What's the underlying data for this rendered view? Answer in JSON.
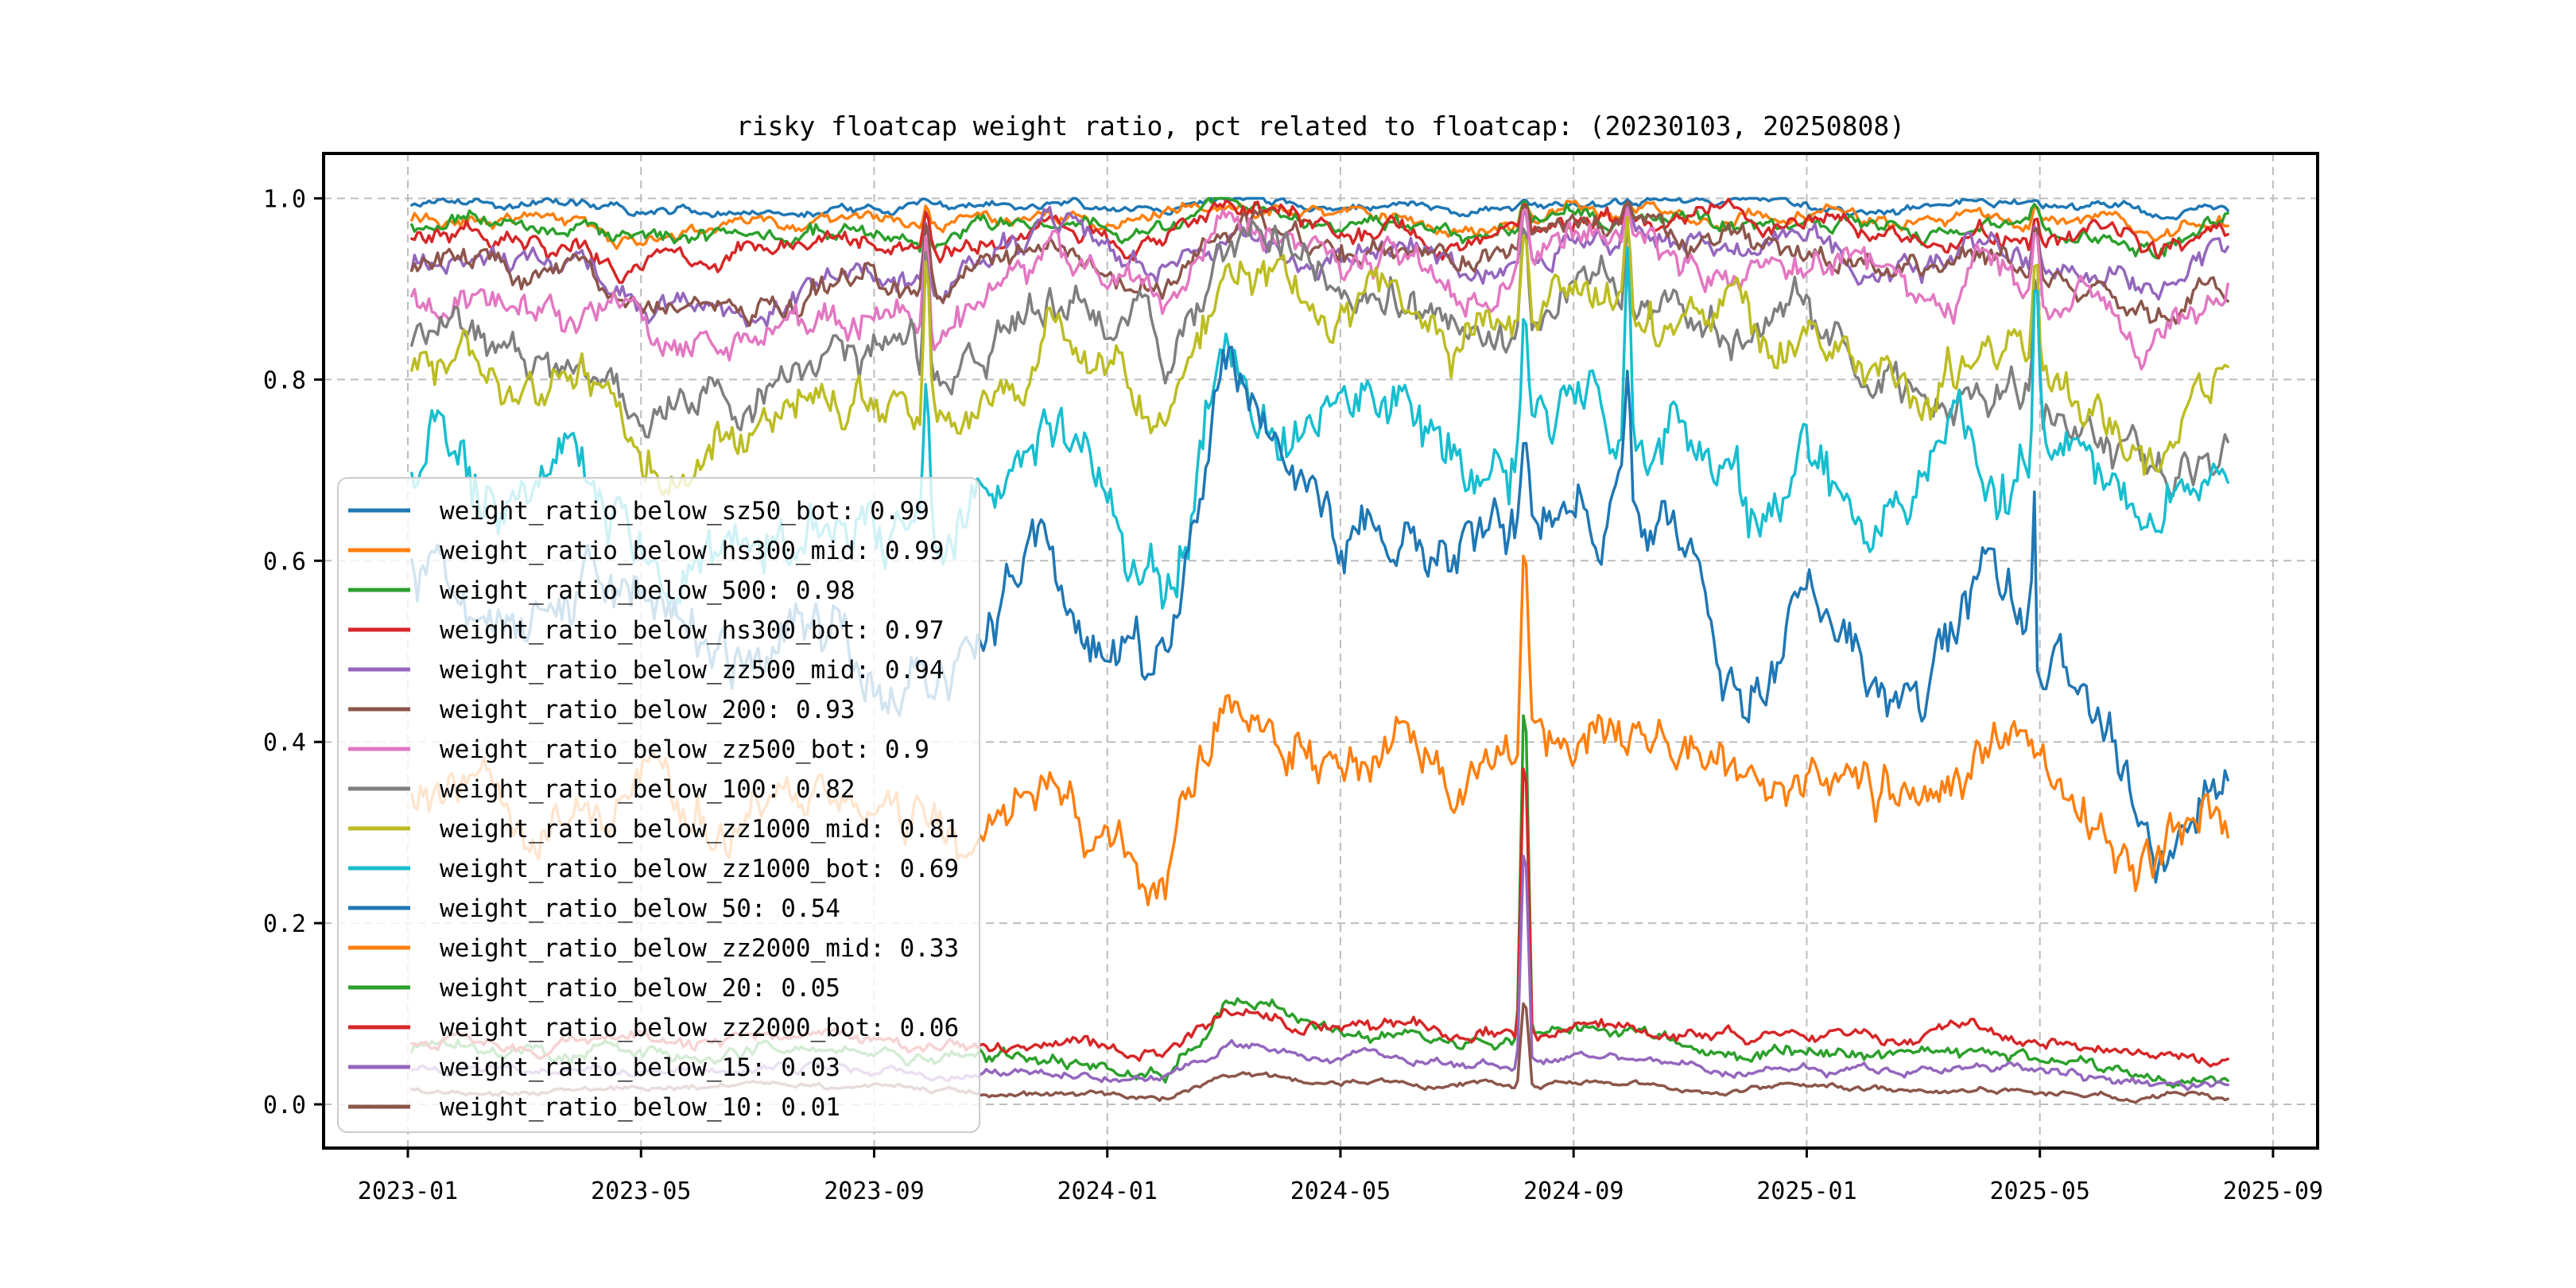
{
  "figure": {
    "title": "risky floatcap weight ratio, pct related to floatcap: (20230103, 20250808)",
    "background": "#ffffff"
  },
  "axes": {
    "x_tick_labels": [
      "2023-01",
      "2023-05",
      "2023-09",
      "2024-01",
      "2024-05",
      "2024-09",
      "2025-01",
      "2025-05",
      "2025-09"
    ],
    "x_tick_month_index": [
      0,
      4,
      8,
      12,
      16,
      20,
      24,
      28,
      32
    ],
    "y_tick_labels": [
      "0.0",
      "0.2",
      "0.4",
      "0.6",
      "0.8",
      "1.0"
    ],
    "y_tick_values": [
      0.0,
      0.2,
      0.4,
      0.6,
      0.8,
      1.0
    ],
    "grid": "dashed",
    "grid_color": "#bdbdbd",
    "spine_color": "#000000"
  },
  "chart_data": {
    "type": "line",
    "title": "risky floatcap weight ratio, pct related to floatcap: (20230103, 20250808)",
    "xlabel": "",
    "ylabel": "",
    "x_start_date": "2023-01-03",
    "x_end_date": "2025-08-08",
    "x_monthly_categories": [
      "2023-01",
      "2023-02",
      "2023-03",
      "2023-04",
      "2023-05",
      "2023-06",
      "2023-07",
      "2023-08",
      "2023-09",
      "2023-10",
      "2023-11",
      "2023-12",
      "2024-01",
      "2024-02",
      "2024-03",
      "2024-04",
      "2024-05",
      "2024-06",
      "2024-07",
      "2024-08",
      "2024-09",
      "2024-10",
      "2024-11",
      "2024-12",
      "2025-01",
      "2025-02",
      "2025-03",
      "2025-04",
      "2025-05",
      "2025-06",
      "2025-07",
      "2025-08"
    ],
    "ylim": [
      0.0,
      1.05
    ],
    "legend_position": "center left",
    "series": [
      {
        "id": "weight_ratio_below_sz50_bot",
        "legend_label": "weight_ratio_below_sz50_bot: 0.99",
        "legend_value": 0.99,
        "color": "#1f77b4",
        "noise": 0.006,
        "monthly_values": [
          0.99,
          0.994,
          0.993,
          0.99,
          0.984,
          0.986,
          0.982,
          0.986,
          0.986,
          0.99,
          0.994,
          0.995,
          0.988,
          0.986,
          0.996,
          0.994,
          0.99,
          0.992,
          0.986,
          0.99,
          0.995,
          0.995,
          0.994,
          0.995,
          0.992,
          0.99,
          0.99,
          0.994,
          0.992,
          0.99,
          0.986,
          0.992
        ]
      },
      {
        "id": "weight_ratio_below_hs300_mid",
        "legend_label": "weight_ratio_below_hs300_mid: 0.99",
        "legend_value": 0.99,
        "color": "#ff7f0e",
        "noise": 0.009,
        "monthly_values": [
          0.975,
          0.982,
          0.976,
          0.97,
          0.956,
          0.96,
          0.965,
          0.97,
          0.974,
          0.968,
          0.978,
          0.986,
          0.97,
          0.974,
          0.99,
          0.986,
          0.976,
          0.98,
          0.97,
          0.976,
          0.99,
          0.986,
          0.982,
          0.986,
          0.98,
          0.976,
          0.97,
          0.982,
          0.976,
          0.972,
          0.966,
          0.98
        ]
      },
      {
        "id": "weight_ratio_below_500",
        "legend_label": "weight_ratio_below_500: 0.98",
        "legend_value": 0.98,
        "color": "#2ca02c",
        "noise": 0.011,
        "monthly_values": [
          0.966,
          0.975,
          0.968,
          0.96,
          0.944,
          0.95,
          0.955,
          0.96,
          0.965,
          0.955,
          0.97,
          0.98,
          0.962,
          0.96,
          0.986,
          0.982,
          0.97,
          0.976,
          0.96,
          0.97,
          0.986,
          0.982,
          0.976,
          0.98,
          0.976,
          0.97,
          0.96,
          0.976,
          0.966,
          0.96,
          0.95,
          0.97
        ]
      },
      {
        "id": "weight_ratio_below_hs300_bot",
        "legend_label": "weight_ratio_below_hs300_bot: 0.97",
        "legend_value": 0.97,
        "color": "#d62728",
        "noise": 0.014,
        "monthly_values": [
          0.954,
          0.965,
          0.952,
          0.944,
          0.924,
          0.93,
          0.94,
          0.95,
          0.955,
          0.944,
          0.96,
          0.976,
          0.954,
          0.95,
          0.986,
          0.976,
          0.96,
          0.97,
          0.95,
          0.96,
          0.982,
          0.976,
          0.97,
          0.976,
          0.97,
          0.96,
          0.95,
          0.97,
          0.956,
          0.95,
          0.94,
          0.966
        ]
      },
      {
        "id": "weight_ratio_below_zz500_mid",
        "legend_label": "weight_ratio_below_zz500_mid: 0.94",
        "legend_value": 0.94,
        "color": "#9467bd",
        "noise": 0.018,
        "monthly_values": [
          0.925,
          0.94,
          0.928,
          0.918,
          0.884,
          0.89,
          0.9,
          0.91,
          0.915,
          0.898,
          0.924,
          0.95,
          0.93,
          0.92,
          0.972,
          0.962,
          0.94,
          0.95,
          0.92,
          0.93,
          0.966,
          0.96,
          0.95,
          0.956,
          0.95,
          0.935,
          0.92,
          0.946,
          0.93,
          0.924,
          0.9,
          0.936
        ]
      },
      {
        "id": "weight_ratio_below_200",
        "legend_label": "weight_ratio_below_200: 0.93",
        "legend_value": 0.93,
        "color": "#8c564b",
        "noise": 0.018,
        "monthly_values": [
          0.918,
          0.934,
          0.918,
          0.908,
          0.872,
          0.878,
          0.888,
          0.898,
          0.908,
          0.888,
          0.914,
          0.944,
          0.928,
          0.908,
          0.976,
          0.966,
          0.944,
          0.954,
          0.924,
          0.934,
          0.97,
          0.96,
          0.946,
          0.95,
          0.944,
          0.93,
          0.91,
          0.94,
          0.92,
          0.895,
          0.865,
          0.905
        ]
      },
      {
        "id": "weight_ratio_below_zz500_bot",
        "legend_label": "weight_ratio_below_zz500_bot: 0.9",
        "legend_value": 0.9,
        "color": "#e377c2",
        "noise": 0.024,
        "monthly_values": [
          0.898,
          0.914,
          0.894,
          0.884,
          0.838,
          0.844,
          0.858,
          0.874,
          0.884,
          0.858,
          0.89,
          0.93,
          0.904,
          0.88,
          0.984,
          0.954,
          0.924,
          0.94,
          0.9,
          0.914,
          0.954,
          0.944,
          0.93,
          0.94,
          0.93,
          0.914,
          0.888,
          0.92,
          0.898,
          0.884,
          0.844,
          0.89
        ]
      },
      {
        "id": "weight_ratio_below_100",
        "legend_label": "weight_ratio_below_100: 0.82",
        "legend_value": 0.82,
        "color": "#7f7f7f",
        "noise": 0.03,
        "monthly_values": [
          0.85,
          0.862,
          0.828,
          0.844,
          0.778,
          0.77,
          0.8,
          0.814,
          0.824,
          0.79,
          0.82,
          0.88,
          0.85,
          0.82,
          0.964,
          0.93,
          0.89,
          0.904,
          0.86,
          0.874,
          0.92,
          0.89,
          0.868,
          0.86,
          0.864,
          0.84,
          0.78,
          0.83,
          0.8,
          0.77,
          0.69,
          0.735
        ]
      },
      {
        "id": "weight_ratio_below_zz1000_mid",
        "legend_label": "weight_ratio_below_zz1000_mid: 0.81",
        "legend_value": 0.81,
        "color": "#bcbd22",
        "noise": 0.032,
        "monthly_values": [
          0.8,
          0.82,
          0.76,
          0.79,
          0.73,
          0.71,
          0.75,
          0.77,
          0.78,
          0.73,
          0.77,
          0.84,
          0.8,
          0.75,
          0.944,
          0.9,
          0.86,
          0.874,
          0.83,
          0.85,
          0.89,
          0.87,
          0.85,
          0.84,
          0.85,
          0.82,
          0.77,
          0.82,
          0.79,
          0.76,
          0.7,
          0.798
        ]
      },
      {
        "id": "weight_ratio_below_zz1000_bot",
        "legend_label": "weight_ratio_below_zz1000_bot: 0.69",
        "legend_value": 0.69,
        "color": "#17becf",
        "noise": 0.046,
        "monthly_values": [
          0.7,
          0.73,
          0.63,
          0.68,
          0.61,
          0.58,
          0.63,
          0.66,
          0.67,
          0.6,
          0.65,
          0.76,
          0.62,
          0.57,
          0.85,
          0.78,
          0.73,
          0.77,
          0.7,
          0.73,
          0.78,
          0.73,
          0.75,
          0.64,
          0.7,
          0.62,
          0.73,
          0.68,
          0.71,
          0.7,
          0.61,
          0.66
        ]
      },
      {
        "id": "weight_ratio_below_50",
        "legend_label": "weight_ratio_below_50: 0.54",
        "legend_value": 0.54,
        "color": "#1f77b4",
        "noise": 0.042,
        "monthly_values": [
          0.6,
          0.57,
          0.54,
          0.57,
          0.52,
          0.49,
          0.5,
          0.52,
          0.48,
          0.45,
          0.52,
          0.61,
          0.48,
          0.46,
          0.83,
          0.72,
          0.63,
          0.67,
          0.6,
          0.63,
          0.66,
          0.67,
          0.6,
          0.44,
          0.6,
          0.48,
          0.44,
          0.62,
          0.5,
          0.44,
          0.28,
          0.32
        ]
      },
      {
        "id": "weight_ratio_below_zz2000_mid",
        "legend_label": "weight_ratio_below_zz2000_mid: 0.33",
        "legend_value": 0.33,
        "color": "#ff7f0e",
        "noise": 0.034,
        "monthly_values": [
          0.33,
          0.35,
          0.3,
          0.34,
          0.36,
          0.33,
          0.35,
          0.36,
          0.33,
          0.29,
          0.31,
          0.36,
          0.25,
          0.22,
          0.44,
          0.4,
          0.38,
          0.4,
          0.36,
          0.38,
          0.4,
          0.41,
          0.38,
          0.33,
          0.38,
          0.33,
          0.35,
          0.4,
          0.37,
          0.33,
          0.25,
          0.31
        ]
      },
      {
        "id": "weight_ratio_below_20",
        "legend_label": "weight_ratio_below_20: 0.05",
        "legend_value": 0.05,
        "color": "#2ca02c",
        "noise": 0.009,
        "monthly_values": [
          0.055,
          0.06,
          0.05,
          0.055,
          0.06,
          0.055,
          0.06,
          0.065,
          0.055,
          0.05,
          0.05,
          0.055,
          0.04,
          0.035,
          0.115,
          0.1,
          0.08,
          0.085,
          0.07,
          0.075,
          0.085,
          0.075,
          0.065,
          0.055,
          0.065,
          0.05,
          0.055,
          0.06,
          0.05,
          0.04,
          0.03,
          0.025
        ]
      },
      {
        "id": "weight_ratio_below_zz2000_bot",
        "legend_label": "weight_ratio_below_zz2000_bot: 0.06",
        "legend_value": 0.06,
        "color": "#d62728",
        "noise": 0.009,
        "monthly_values": [
          0.07,
          0.075,
          0.065,
          0.07,
          0.075,
          0.07,
          0.075,
          0.08,
          0.07,
          0.065,
          0.065,
          0.07,
          0.055,
          0.05,
          0.095,
          0.09,
          0.08,
          0.085,
          0.075,
          0.08,
          0.09,
          0.085,
          0.08,
          0.07,
          0.08,
          0.07,
          0.075,
          0.08,
          0.07,
          0.065,
          0.055,
          0.055
        ]
      },
      {
        "id": "weight_ratio_below_15",
        "legend_label": "weight_ratio_below_15: 0.03",
        "legend_value": 0.03,
        "color": "#9467bd",
        "noise": 0.006,
        "monthly_values": [
          0.035,
          0.04,
          0.033,
          0.036,
          0.04,
          0.037,
          0.04,
          0.042,
          0.036,
          0.033,
          0.033,
          0.036,
          0.028,
          0.025,
          0.065,
          0.06,
          0.05,
          0.052,
          0.045,
          0.048,
          0.055,
          0.05,
          0.045,
          0.038,
          0.042,
          0.035,
          0.036,
          0.04,
          0.035,
          0.03,
          0.022,
          0.018
        ]
      },
      {
        "id": "weight_ratio_below_10",
        "legend_label": "weight_ratio_below_10: 0.01",
        "legend_value": 0.01,
        "color": "#8c564b",
        "noise": 0.004,
        "monthly_values": [
          0.015,
          0.017,
          0.014,
          0.015,
          0.017,
          0.016,
          0.017,
          0.018,
          0.015,
          0.014,
          0.014,
          0.015,
          0.012,
          0.01,
          0.032,
          0.028,
          0.022,
          0.024,
          0.02,
          0.022,
          0.026,
          0.022,
          0.02,
          0.016,
          0.018,
          0.015,
          0.015,
          0.017,
          0.014,
          0.012,
          0.008,
          0.006
        ]
      }
    ],
    "events": [
      {
        "type": "pinch",
        "t": 8.9,
        "width": 0.1,
        "pull": 0.85
      },
      {
        "type": "pinch",
        "t": 20.93,
        "width": 0.1,
        "pull": 0.85
      },
      {
        "type": "pinch",
        "t": 27.93,
        "width": 0.1,
        "pull": 0.8
      },
      {
        "type": "spike",
        "t": 19.16,
        "width": 0.13,
        "targets": {
          "weight_ratio_below_sz50_bot": 1.0,
          "weight_ratio_below_hs300_mid": 1.0,
          "weight_ratio_below_500": 1.0,
          "weight_ratio_below_hs300_bot": 1.0,
          "weight_ratio_below_zz500_mid": 1.0,
          "weight_ratio_below_200": 1.0,
          "weight_ratio_below_zz500_bot": 1.0,
          "weight_ratio_below_100": 0.99,
          "weight_ratio_below_zz1000_mid": 0.98,
          "weight_ratio_below_zz1000_bot": 0.9,
          "weight_ratio_below_50": 0.75,
          "weight_ratio_below_zz2000_mid": 0.65,
          "weight_ratio_below_20": 0.5,
          "weight_ratio_below_zz2000_bot": 0.43,
          "weight_ratio_below_15": 0.32,
          "weight_ratio_below_10": 0.13
        }
      }
    ]
  }
}
